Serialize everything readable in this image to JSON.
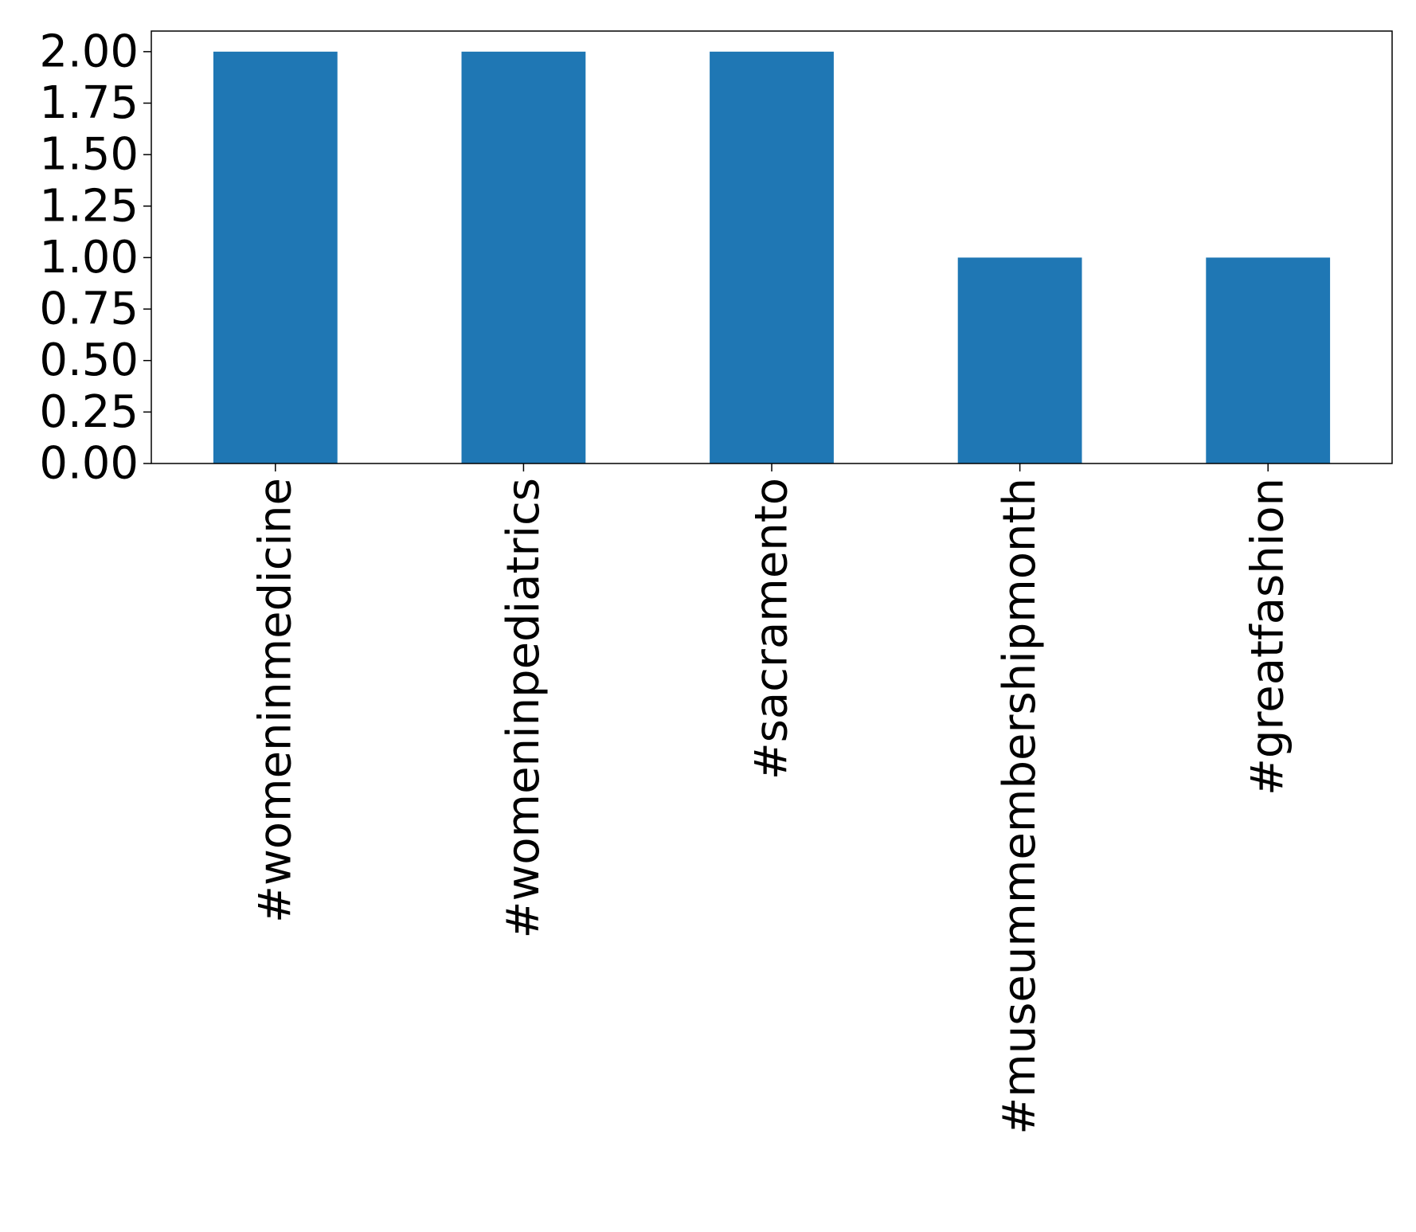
{
  "chart_data": {
    "type": "bar",
    "categories": [
      "#womeninmedicine",
      "#womeninpediatrics",
      "#sacramento",
      "#museummembershipmonth",
      "#greatfashion"
    ],
    "values": [
      2,
      2,
      2,
      1,
      1
    ],
    "title": "",
    "xlabel": "",
    "ylabel": "",
    "ylim": [
      0,
      2.1
    ],
    "yticks": [
      "0.00",
      "0.25",
      "0.50",
      "0.75",
      "1.00",
      "1.25",
      "1.50",
      "1.75",
      "2.00"
    ],
    "bar_color": "#1f77b4",
    "grid": false,
    "legend": "none"
  }
}
